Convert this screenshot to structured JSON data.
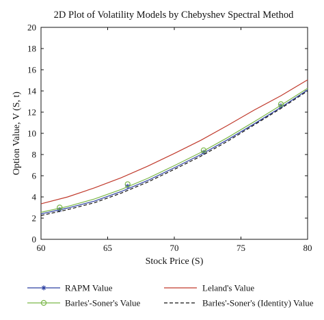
{
  "chart_data": {
    "type": "line",
    "title": "2D Plot of Volatility Models by Chebyshev Spectral Method",
    "xlabel": "Stock Price (S)",
    "ylabel": "Option Value, V (S, t)",
    "xlim": [
      60,
      80
    ],
    "ylim": [
      0,
      20
    ],
    "xticks": [
      60,
      65,
      70,
      75,
      80
    ],
    "yticks": [
      0,
      2,
      4,
      6,
      8,
      10,
      12,
      14,
      16,
      18,
      20
    ],
    "grid": false,
    "legend_position": "bottom",
    "series": [
      {
        "name": "RAPM Value",
        "color": "#2b3fa0",
        "line": "solid",
        "marker": "star",
        "x": [
          60,
          62,
          64,
          66,
          68,
          70,
          72,
          74,
          76,
          78,
          80
        ],
        "y": [
          2.4,
          2.95,
          3.6,
          4.5,
          5.55,
          6.75,
          8.0,
          9.4,
          10.9,
          12.45,
          14.1
        ],
        "marker_x": [
          61.4,
          66.5,
          72.2,
          78.0
        ],
        "marker_y": [
          2.8,
          5.0,
          8.2,
          12.6
        ]
      },
      {
        "name": "Leland's Value",
        "color": "#c0392b",
        "line": "solid",
        "marker": "none",
        "x": [
          60,
          62,
          64,
          66,
          68,
          70,
          72,
          74,
          76,
          78,
          80
        ],
        "y": [
          3.35,
          4.0,
          4.85,
          5.8,
          6.9,
          8.1,
          9.35,
          10.75,
          12.2,
          13.55,
          15.05
        ]
      },
      {
        "name": "Barles'-Soner's Value",
        "color": "#7ab648",
        "line": "solid",
        "marker": "circle",
        "x": [
          60,
          62,
          64,
          66,
          68,
          70,
          72,
          74,
          76,
          78,
          80
        ],
        "y": [
          2.55,
          3.1,
          3.8,
          4.7,
          5.75,
          6.95,
          8.2,
          9.6,
          11.1,
          12.65,
          14.25
        ],
        "marker_x": [
          61.4,
          66.5,
          72.2,
          78.0
        ],
        "marker_y": [
          3.0,
          5.2,
          8.4,
          12.75
        ]
      },
      {
        "name": "Barles'-Soner's (Identity) Value",
        "color": "#111111",
        "line": "dashed",
        "marker": "none",
        "x": [
          60,
          62,
          64,
          66,
          68,
          70,
          72,
          74,
          76,
          78,
          80
        ],
        "y": [
          2.25,
          2.8,
          3.45,
          4.35,
          5.4,
          6.6,
          7.85,
          9.25,
          10.8,
          12.35,
          14.0
        ]
      }
    ]
  }
}
